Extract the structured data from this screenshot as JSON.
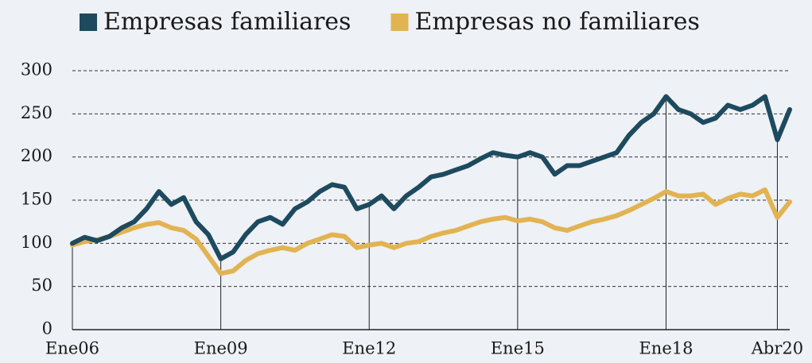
{
  "chart_data": {
    "type": "line",
    "x": [
      2006,
      2006.25,
      2006.5,
      2006.75,
      2007,
      2007.25,
      2007.5,
      2007.75,
      2008,
      2008.25,
      2008.5,
      2008.75,
      2009,
      2009.25,
      2009.5,
      2009.75,
      2010,
      2010.25,
      2010.5,
      2010.75,
      2011,
      2011.25,
      2011.5,
      2011.75,
      2012,
      2012.25,
      2012.5,
      2012.75,
      2013,
      2013.25,
      2013.5,
      2013.75,
      2014,
      2014.25,
      2014.5,
      2014.75,
      2015,
      2015.25,
      2015.5,
      2015.75,
      2016,
      2016.25,
      2016.5,
      2016.75,
      2017,
      2017.25,
      2017.5,
      2017.75,
      2018,
      2018.25,
      2018.5,
      2018.75,
      2019,
      2019.25,
      2019.5,
      2019.75,
      2020,
      2020.25,
      2020.5
    ],
    "series": [
      {
        "name": "Empresas familiares",
        "color": "#1d4a5e",
        "values": [
          100,
          107,
          103,
          108,
          118,
          125,
          140,
          160,
          145,
          153,
          125,
          110,
          82,
          90,
          110,
          125,
          130,
          122,
          140,
          148,
          160,
          168,
          165,
          140,
          145,
          155,
          140,
          155,
          165,
          177,
          180,
          185,
          190,
          198,
          205,
          202,
          200,
          205,
          200,
          180,
          190,
          190,
          195,
          200,
          205,
          225,
          240,
          250,
          270,
          255,
          250,
          240,
          245,
          260,
          255,
          260,
          270,
          220,
          255
        ]
      },
      {
        "name": "Empresas no familiares",
        "color": "#e2b352",
        "values": [
          98,
          102,
          104,
          108,
          113,
          118,
          122,
          124,
          118,
          115,
          105,
          85,
          65,
          68,
          80,
          88,
          92,
          95,
          92,
          100,
          105,
          110,
          108,
          95,
          98,
          100,
          95,
          100,
          102,
          108,
          112,
          115,
          120,
          125,
          128,
          130,
          126,
          128,
          125,
          118,
          115,
          120,
          125,
          128,
          132,
          138,
          145,
          152,
          160,
          155,
          155,
          157,
          145,
          152,
          157,
          155,
          162,
          130,
          148
        ]
      }
    ],
    "xlim": [
      2006,
      2020.5
    ],
    "xticks": [
      {
        "value": 2006,
        "label": "Ene06"
      },
      {
        "value": 2009,
        "label": "Ene09"
      },
      {
        "value": 2012,
        "label": "Ene12"
      },
      {
        "value": 2015,
        "label": "Ene15"
      },
      {
        "value": 2018,
        "label": "Ene18"
      },
      {
        "value": 2020.25,
        "label": "Abr20"
      }
    ],
    "ylim": [
      0,
      300
    ],
    "yticks": [
      0,
      50,
      100,
      150,
      200,
      250,
      300
    ],
    "grid": true,
    "legend": "top"
  }
}
